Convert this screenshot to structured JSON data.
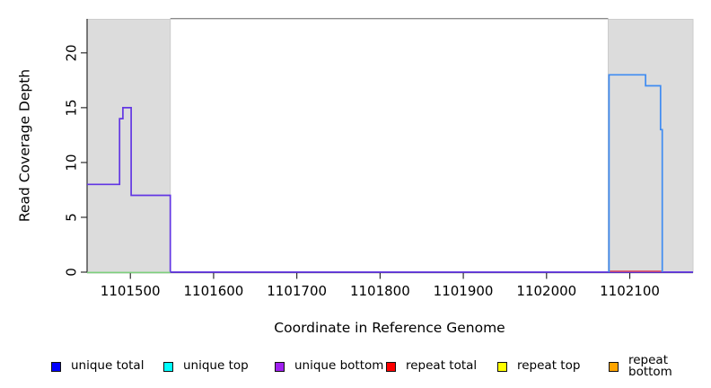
{
  "chart_data": {
    "type": "line",
    "title": "",
    "xlabel": "Coordinate in Reference Genome",
    "ylabel": "Read Coverage Depth",
    "xlim": [
      1101448,
      1102176
    ],
    "ylim": [
      0,
      23.1
    ],
    "grid": false,
    "legend_position": "bottom",
    "x_ticks": [
      {
        "value": 1101500,
        "label": "1101500"
      },
      {
        "value": 1101600,
        "label": "1101600"
      },
      {
        "value": 1101700,
        "label": "1101700"
      },
      {
        "value": 1101800,
        "label": "1101800"
      },
      {
        "value": 1101900,
        "label": "1101900"
      },
      {
        "value": 1102000,
        "label": "1102000"
      },
      {
        "value": 1102100,
        "label": "1102100"
      }
    ],
    "y_ticks": [
      {
        "value": 0,
        "label": "0"
      },
      {
        "value": 5,
        "label": "5"
      },
      {
        "value": 10,
        "label": "10"
      },
      {
        "value": 15,
        "label": "15"
      },
      {
        "value": 20,
        "label": "20"
      }
    ],
    "shaded_regions": [
      {
        "name": "left-repeat-region",
        "x_start": 1101448,
        "x_end": 1101548,
        "fill": "#dcdcdc",
        "border": "#c9c9c9"
      },
      {
        "name": "right-repeat-region",
        "x_start": 1102074,
        "x_end": 1102176,
        "fill": "#dcdcdc",
        "border": "#c9c9c9"
      }
    ],
    "panel_top_border": {
      "x_start": 1101548,
      "x_end": 1102074,
      "color": "#8c8c8c"
    },
    "axis_color": "#1a1a1a",
    "series": [
      {
        "name": "unique-bottom-strand-coverage-left",
        "color": "#6236e3",
        "points": [
          [
            1101448,
            8
          ],
          [
            1101487,
            8
          ],
          [
            1101487,
            14
          ],
          [
            1101491,
            14
          ],
          [
            1101491,
            15
          ],
          [
            1101501,
            15
          ],
          [
            1101501,
            7
          ],
          [
            1101548,
            7
          ],
          [
            1101548,
            0
          ],
          [
            1102176,
            0
          ]
        ]
      },
      {
        "name": "repeat-total-baseline-right",
        "color": "#dd4a5c",
        "points": [
          [
            1102075,
            0
          ],
          [
            1102138,
            0
          ]
        ]
      },
      {
        "name": "unique-top-strand-coverage-right",
        "color": "#3e8bf2",
        "points": [
          [
            1102075,
            0
          ],
          [
            1102075,
            18
          ],
          [
            1102119,
            18
          ],
          [
            1102119,
            17
          ],
          [
            1102137,
            17
          ],
          [
            1102137,
            13
          ],
          [
            1102139,
            13
          ],
          [
            1102139,
            0
          ]
        ]
      },
      {
        "name": "unique-top-repeat-top-baseline-left",
        "color": "#7ccf7c",
        "points": [
          [
            1101448,
            0
          ],
          [
            1101548,
            0
          ]
        ]
      }
    ]
  },
  "legend": {
    "items": [
      {
        "label": "unique total",
        "color": "#0000ff"
      },
      {
        "label": "unique top",
        "color": "#00ffff"
      },
      {
        "label": "unique bottom",
        "color": "#a020f0"
      },
      {
        "label": "repeat total",
        "color": "#ff0000"
      },
      {
        "label": "repeat top",
        "color": "#ffff00"
      },
      {
        "label": "repeat bottom",
        "color": "#ffa500"
      }
    ]
  }
}
